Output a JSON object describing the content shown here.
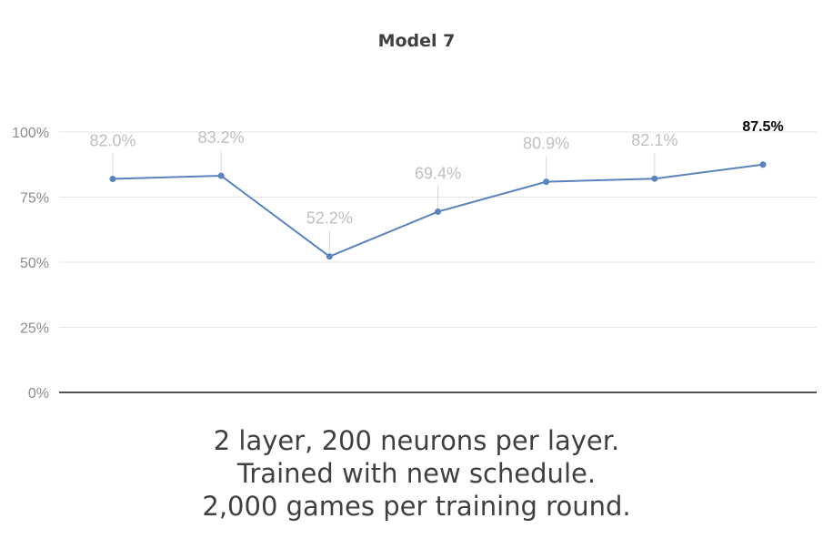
{
  "chart_data": {
    "type": "line",
    "title": "Model 7",
    "categories": [
      "",
      "",
      "",
      "",
      "",
      "",
      ""
    ],
    "series": [
      {
        "values": [
          82.0,
          83.2,
          52.2,
          69.4,
          80.9,
          82.1,
          87.5
        ]
      }
    ],
    "data_labels": [
      "82.0%",
      "83.2%",
      "52.2%",
      "69.4%",
      "80.9%",
      "82.1%",
      "87.5%"
    ],
    "highlighted_label_index": 6,
    "y_ticks": [
      "0%",
      "25%",
      "50%",
      "75%",
      "100%"
    ],
    "y_tick_values": [
      0,
      25,
      50,
      75,
      100
    ],
    "ylim": [
      0,
      100
    ],
    "xlabel": "",
    "ylabel": "",
    "grid": true,
    "legend": "none",
    "colors": {
      "line": "#5b84be",
      "label": "#bfbfbf",
      "highlight_label": "#000000",
      "grid": "#e6e6e6",
      "axis": "#1a1a1a",
      "tick": "#8c8c8c"
    }
  },
  "caption": {
    "line1": "2 layer, 200 neurons per layer.",
    "line2": "Trained with new schedule.",
    "line3": "2,000 games per training round."
  }
}
